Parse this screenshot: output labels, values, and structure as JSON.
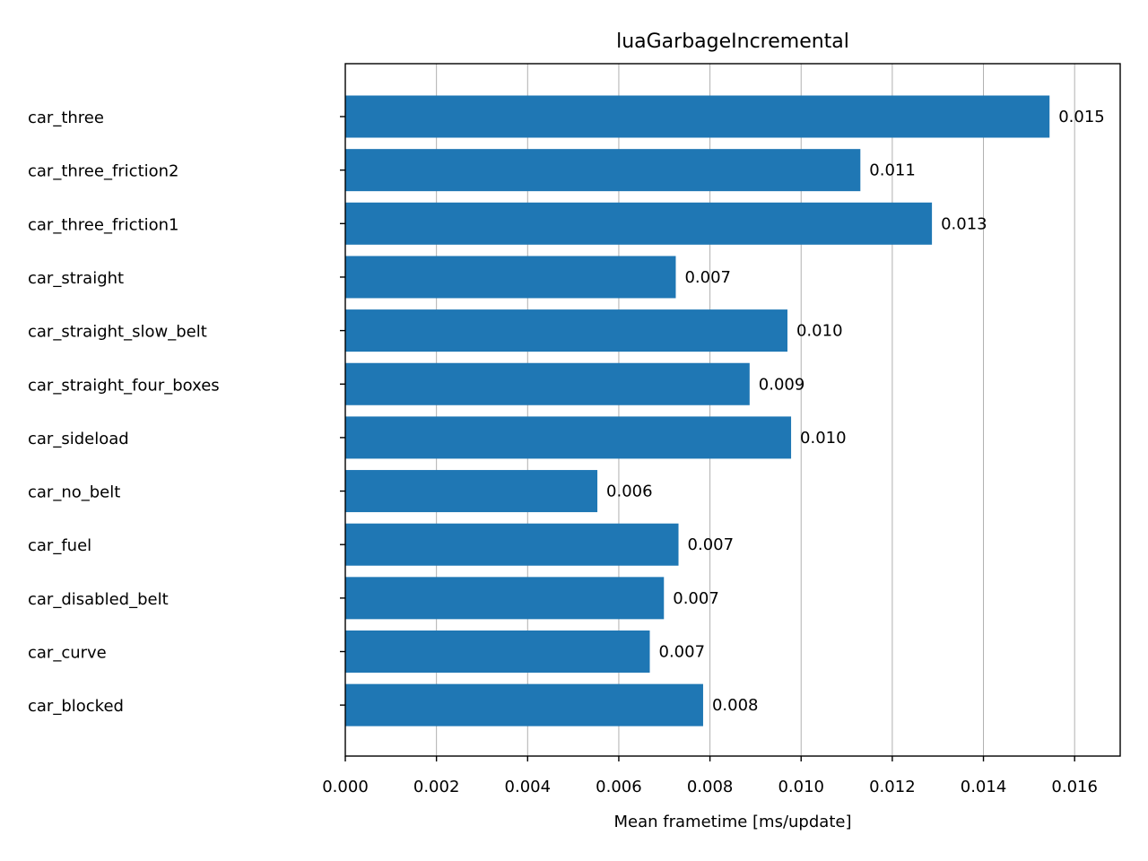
{
  "chart_data": {
    "type": "bar",
    "orientation": "horizontal",
    "title": "luaGarbageIncremental",
    "xlabel": "Mean frametime [ms/update]",
    "ylabel": "",
    "xlim": [
      0,
      0.017
    ],
    "xticks": [
      0.0,
      0.002,
      0.004,
      0.006,
      0.008,
      0.01,
      0.012,
      0.014,
      0.016
    ],
    "xtick_labels": [
      "0.000",
      "0.002",
      "0.004",
      "0.006",
      "0.008",
      "0.010",
      "0.012",
      "0.014",
      "0.016"
    ],
    "grid": "x-major",
    "bar_color": "#1f77b4",
    "categories": [
      "car_three",
      "car_three_friction2",
      "car_three_friction1",
      "car_straight",
      "car_straight_slow_belt",
      "car_straight_four_boxes",
      "car_sideload",
      "car_no_belt",
      "car_fuel",
      "car_disabled_belt",
      "car_curve",
      "car_blocked"
    ],
    "values": [
      0.01545,
      0.0113,
      0.01287,
      0.00725,
      0.0097,
      0.00887,
      0.00978,
      0.00553,
      0.00731,
      0.00699,
      0.00668,
      0.00785
    ],
    "value_labels": [
      "0.015",
      "0.011",
      "0.013",
      "0.007",
      "0.010",
      "0.009",
      "0.010",
      "0.006",
      "0.007",
      "0.007",
      "0.007",
      "0.008"
    ]
  }
}
